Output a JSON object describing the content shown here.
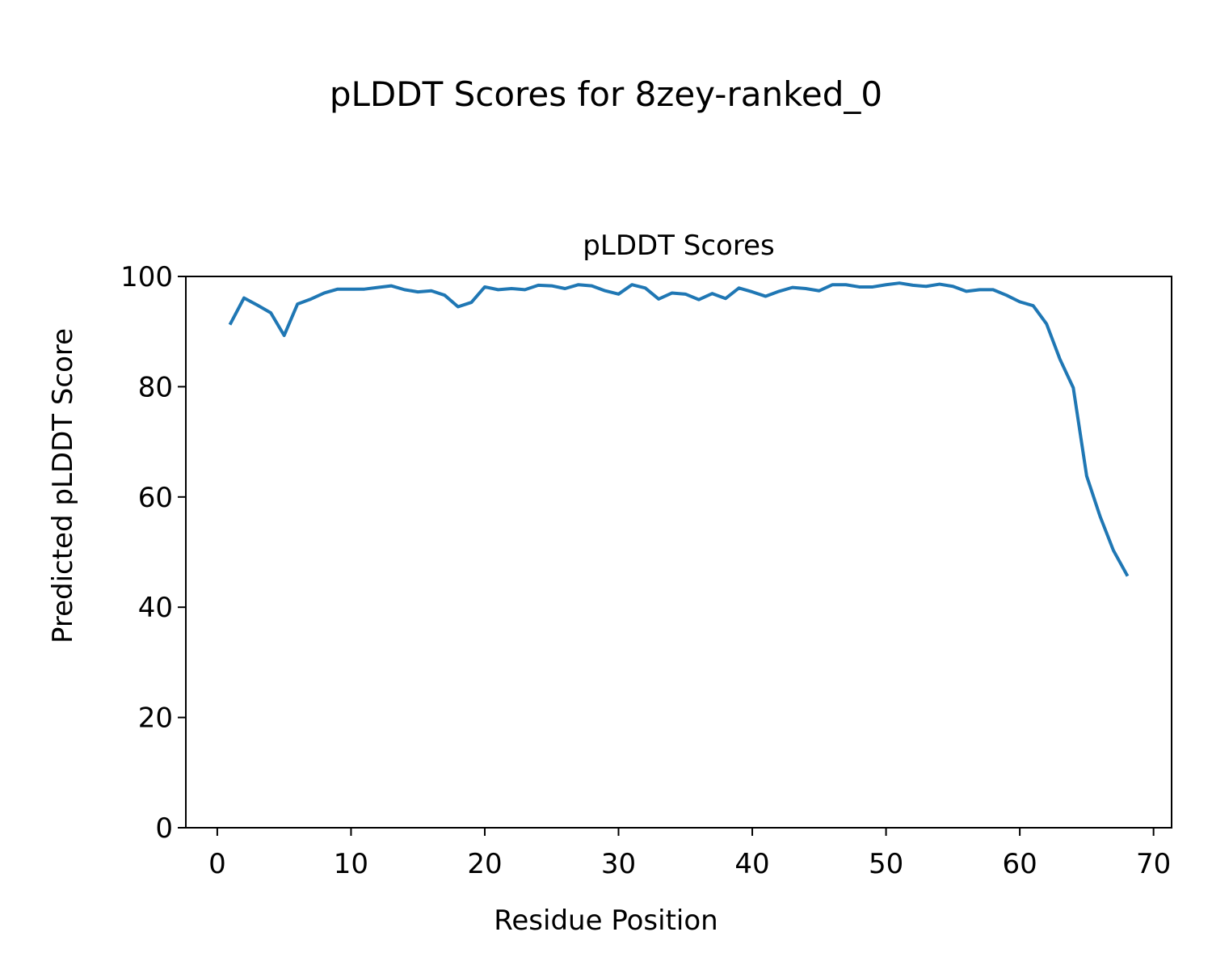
{
  "figure": {
    "suptitle": "pLDDT Scores for 8zey-ranked_0"
  },
  "chart_data": {
    "type": "line",
    "title": "pLDDT Scores",
    "xlabel": "Residue Position",
    "ylabel": "Predicted pLDDT Score",
    "xlim": [
      -2.35,
      71.35
    ],
    "ylim": [
      0,
      100
    ],
    "xticks": [
      0,
      10,
      20,
      30,
      40,
      50,
      60,
      70
    ],
    "yticks": [
      0,
      20,
      40,
      60,
      80,
      100
    ],
    "grid": false,
    "line_color": "#1f77b4",
    "series": [
      {
        "x": [
          1,
          2,
          3,
          4,
          5,
          6,
          7,
          8,
          9,
          10,
          11,
          12,
          13,
          14,
          15,
          16,
          17,
          18,
          19,
          20,
          21,
          22,
          23,
          24,
          25,
          26,
          27,
          28,
          29,
          30,
          31,
          32,
          33,
          34,
          35,
          36,
          37,
          38,
          39,
          40,
          41,
          42,
          43,
          44,
          45,
          46,
          47,
          48,
          49,
          50,
          51,
          52,
          53,
          54,
          55,
          56,
          57,
          58,
          59,
          60,
          61,
          62,
          63,
          64,
          65,
          66,
          67,
          68
        ],
        "values": [
          91.5,
          96.1,
          94.8,
          93.4,
          89.3,
          95.0,
          95.9,
          97.0,
          97.7,
          97.7,
          97.7,
          98.0,
          98.3,
          97.6,
          97.2,
          97.4,
          96.6,
          94.5,
          95.3,
          98.1,
          97.6,
          97.8,
          97.6,
          98.4,
          98.3,
          97.8,
          98.5,
          98.3,
          97.4,
          96.8,
          98.5,
          97.9,
          95.9,
          97.0,
          96.8,
          95.8,
          96.9,
          96.0,
          97.9,
          97.2,
          96.4,
          97.3,
          98.0,
          97.8,
          97.4,
          98.5,
          98.5,
          98.1,
          98.1,
          98.5,
          98.8,
          98.4,
          98.2,
          98.6,
          98.2,
          97.3,
          97.6,
          97.6,
          96.6,
          95.4,
          94.7,
          91.4,
          85.0,
          79.8,
          63.8,
          56.5,
          50.3,
          45.9
        ]
      }
    ]
  }
}
